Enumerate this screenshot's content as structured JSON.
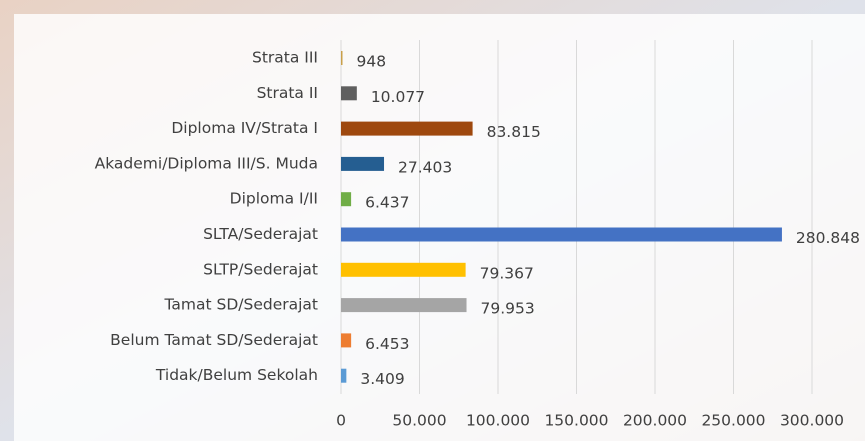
{
  "chart_data": {
    "type": "hbar",
    "categories": [
      "Strata III",
      "Strata II",
      "Diploma IV/Strata I",
      "Akademi/Diploma III/S. Muda",
      "Diploma I/II",
      "SLTA/Sederajat",
      "SLTP/Sederajat",
      "Tamat SD/Sederajat",
      "Belum Tamat SD/Sederajat",
      "Tidak/Belum Sekolah"
    ],
    "values": [
      948,
      10077,
      83815,
      27403,
      6437,
      280848,
      79367,
      79953,
      6453,
      3409
    ],
    "value_labels": [
      "948",
      "10.077",
      "83.815",
      "27.403",
      "6.437",
      "280.848",
      "79.367",
      "79.953",
      "6.453",
      "3.409"
    ],
    "colors": [
      "#c9a04a",
      "#5f5f5f",
      "#9e480e",
      "#255e91",
      "#70ad47",
      "#4472c4",
      "#ffc000",
      "#a5a5a5",
      "#ed7d31",
      "#5b9bd5"
    ],
    "xlim": [
      0,
      300000
    ],
    "xticks": [
      0,
      {
        "value": 50000,
        "label": "50.000"
      },
      {
        "value": 100000,
        "label": "100.000"
      },
      {
        "value": 150000,
        "label": "150.000"
      },
      {
        "value": 200000,
        "label": "200.000"
      },
      {
        "value": 250000,
        "label": "250.000"
      },
      {
        "value": 300000,
        "label": "300.000"
      }
    ],
    "grid": true
  }
}
